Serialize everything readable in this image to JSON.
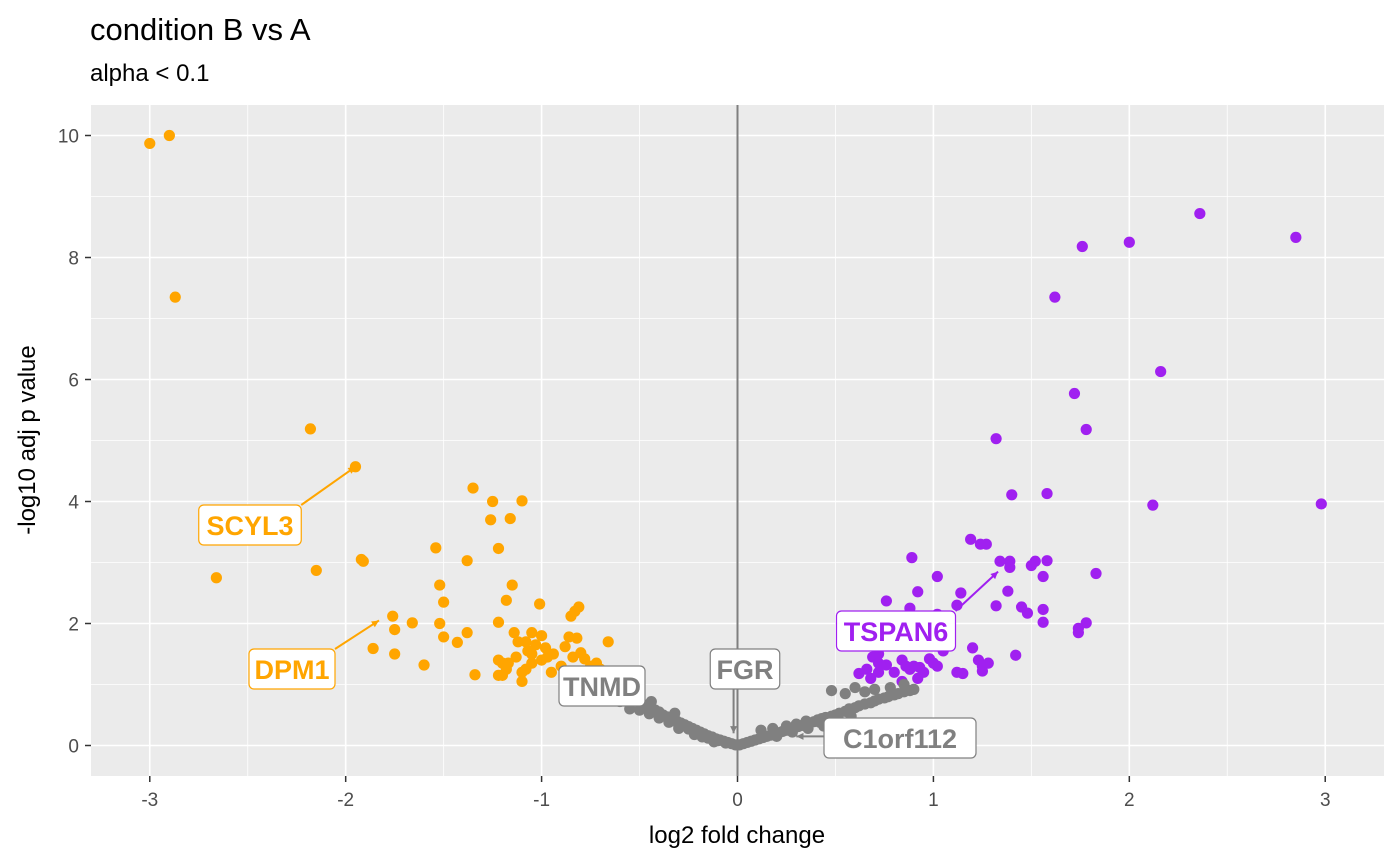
{
  "chart_data": {
    "type": "scatter",
    "title": "condition B vs A",
    "subtitle": "alpha < 0.1",
    "xlabel": "log2 fold change",
    "ylabel": "-log10 adj p value",
    "xlim": [
      -3.3,
      3.3
    ],
    "ylim": [
      -0.5,
      10.5
    ],
    "x_ticks": [
      -3,
      -2,
      -1,
      0,
      1,
      2,
      3
    ],
    "y_ticks": [
      0,
      2,
      4,
      6,
      8,
      10
    ],
    "x_tick_labels": [
      "-3",
      "-2",
      "-1",
      "0",
      "1",
      "2",
      "3"
    ],
    "y_tick_labels": [
      "0",
      "2",
      "4",
      "6",
      "8",
      "10"
    ],
    "grid": true,
    "vline_x": 0,
    "colors": {
      "down": "#FFA500",
      "up": "#A020F0",
      "ns": "#808080",
      "panel": "#EBEBEB"
    },
    "series": [
      {
        "color": "down",
        "points": [
          [
            -3.0,
            9.87
          ],
          [
            -2.9,
            10.0
          ],
          [
            -2.87,
            7.35
          ],
          [
            -2.18,
            5.19
          ],
          [
            -1.95,
            4.57
          ],
          [
            -2.66,
            2.75
          ],
          [
            -2.15,
            2.87
          ],
          [
            -1.92,
            3.05
          ],
          [
            -1.91,
            3.02
          ],
          [
            -1.76,
            2.12
          ],
          [
            -1.75,
            1.9
          ],
          [
            -1.75,
            1.5
          ],
          [
            -1.86,
            1.59
          ],
          [
            -1.66,
            2.01
          ],
          [
            -1.6,
            1.32
          ],
          [
            -1.54,
            3.24
          ],
          [
            -1.52,
            2.63
          ],
          [
            -1.5,
            2.35
          ],
          [
            -1.52,
            2.0
          ],
          [
            -1.5,
            1.78
          ],
          [
            -1.43,
            1.69
          ],
          [
            -1.38,
            1.85
          ],
          [
            -1.38,
            3.03
          ],
          [
            -1.35,
            4.22
          ],
          [
            -1.34,
            1.16
          ],
          [
            -1.25,
            4.0
          ],
          [
            -1.26,
            3.7
          ],
          [
            -1.22,
            3.23
          ],
          [
            -1.22,
            2.02
          ],
          [
            -1.18,
            2.38
          ],
          [
            -1.16,
            3.72
          ],
          [
            -1.15,
            2.63
          ],
          [
            -1.1,
            4.01
          ],
          [
            -1.14,
            1.85
          ],
          [
            -1.12,
            1.7
          ],
          [
            -1.08,
            1.7
          ],
          [
            -1.05,
            1.85
          ],
          [
            -1.03,
            1.65
          ],
          [
            -1.01,
            2.32
          ],
          [
            -1.0,
            1.8
          ],
          [
            -0.98,
            1.6
          ],
          [
            -1.07,
            1.55
          ],
          [
            -1.13,
            1.45
          ],
          [
            -1.17,
            1.35
          ],
          [
            -1.2,
            1.35
          ],
          [
            -1.22,
            1.4
          ],
          [
            -1.22,
            1.15
          ],
          [
            -1.18,
            1.25
          ],
          [
            -1.2,
            1.15
          ],
          [
            -1.1,
            1.05
          ],
          [
            -1.1,
            1.2
          ],
          [
            -1.08,
            1.25
          ],
          [
            -1.05,
            1.5
          ],
          [
            -1.05,
            1.35
          ],
          [
            -1.0,
            1.4
          ],
          [
            -0.97,
            1.45
          ],
          [
            -0.94,
            1.5
          ],
          [
            -0.95,
            1.2
          ],
          [
            -0.9,
            1.3
          ],
          [
            -0.88,
            1.62
          ],
          [
            -0.86,
            1.78
          ],
          [
            -0.85,
            2.12
          ],
          [
            -0.83,
            2.2
          ],
          [
            -0.81,
            2.27
          ],
          [
            -0.84,
            1.45
          ],
          [
            -0.8,
            1.52
          ],
          [
            -0.82,
            1.76
          ],
          [
            -0.78,
            1.42
          ],
          [
            -0.75,
            1.3
          ],
          [
            -0.72,
            1.35
          ],
          [
            -0.7,
            1.25
          ],
          [
            -0.66,
            1.7
          ],
          [
            -0.68,
            1.2
          ]
        ]
      },
      {
        "color": "up",
        "points": [
          [
            1.76,
            8.18
          ],
          [
            2.0,
            8.25
          ],
          [
            2.36,
            8.72
          ],
          [
            2.85,
            8.33
          ],
          [
            1.62,
            7.35
          ],
          [
            2.16,
            6.13
          ],
          [
            1.72,
            5.77
          ],
          [
            1.78,
            5.18
          ],
          [
            1.32,
            5.03
          ],
          [
            1.4,
            4.11
          ],
          [
            1.58,
            4.13
          ],
          [
            2.12,
            3.94
          ],
          [
            2.98,
            3.96
          ],
          [
            0.89,
            3.08
          ],
          [
            1.19,
            3.38
          ],
          [
            1.24,
            3.3
          ],
          [
            1.27,
            3.3
          ],
          [
            1.34,
            3.02
          ],
          [
            1.39,
            3.02
          ],
          [
            1.39,
            2.92
          ],
          [
            1.5,
            2.95
          ],
          [
            1.52,
            3.02
          ],
          [
            1.58,
            3.03
          ],
          [
            1.56,
            2.77
          ],
          [
            1.83,
            2.82
          ],
          [
            1.02,
            2.77
          ],
          [
            0.92,
            2.52
          ],
          [
            1.14,
            2.5
          ],
          [
            1.32,
            2.29
          ],
          [
            1.38,
            2.53
          ],
          [
            1.45,
            2.27
          ],
          [
            1.48,
            2.17
          ],
          [
            1.56,
            2.23
          ],
          [
            1.56,
            2.02
          ],
          [
            1.74,
            1.92
          ],
          [
            1.74,
            1.85
          ],
          [
            1.78,
            2.01
          ],
          [
            1.12,
            2.3
          ],
          [
            1.02,
            2.15
          ],
          [
            0.95,
            2.0
          ],
          [
            0.88,
            2.25
          ],
          [
            0.76,
            2.37
          ],
          [
            0.75,
            2.1
          ],
          [
            0.7,
            2.0
          ],
          [
            0.68,
            1.75
          ],
          [
            0.86,
            1.85
          ],
          [
            0.82,
            1.9
          ],
          [
            0.78,
            1.68
          ],
          [
            0.72,
            1.5
          ],
          [
            0.69,
            1.45
          ],
          [
            0.72,
            1.35
          ],
          [
            0.66,
            1.25
          ],
          [
            0.62,
            1.18
          ],
          [
            0.68,
            1.1
          ],
          [
            0.72,
            1.2
          ],
          [
            0.76,
            1.32
          ],
          [
            0.8,
            1.2
          ],
          [
            0.84,
            1.4
          ],
          [
            0.86,
            1.3
          ],
          [
            0.88,
            1.25
          ],
          [
            0.9,
            1.3
          ],
          [
            0.93,
            1.28
          ],
          [
            0.95,
            1.2
          ],
          [
            0.98,
            1.42
          ],
          [
            1.0,
            1.35
          ],
          [
            1.02,
            1.3
          ],
          [
            1.05,
            1.55
          ],
          [
            1.08,
            1.7
          ],
          [
            1.12,
            1.2
          ],
          [
            1.15,
            1.18
          ],
          [
            1.2,
            1.6
          ],
          [
            1.23,
            1.4
          ],
          [
            1.25,
            1.3
          ],
          [
            1.25,
            1.22
          ],
          [
            1.28,
            1.35
          ],
          [
            1.42,
            1.48
          ],
          [
            0.84,
            1.05
          ],
          [
            0.92,
            1.1
          ]
        ]
      },
      {
        "color": "ns",
        "points": [
          [
            -0.8,
            0.98
          ],
          [
            -0.75,
            0.95
          ],
          [
            -0.7,
            0.92
          ],
          [
            -0.65,
            0.9
          ],
          [
            -0.62,
            0.86
          ],
          [
            -0.58,
            0.82
          ],
          [
            -0.55,
            0.8
          ],
          [
            -0.52,
            0.75
          ],
          [
            -0.5,
            0.7
          ],
          [
            -0.47,
            0.66
          ],
          [
            -0.45,
            0.62
          ],
          [
            -0.42,
            0.58
          ],
          [
            -0.4,
            0.55
          ],
          [
            -0.38,
            0.5
          ],
          [
            -0.36,
            0.47
          ],
          [
            -0.33,
            0.44
          ],
          [
            -0.31,
            0.4
          ],
          [
            -0.29,
            0.37
          ],
          [
            -0.27,
            0.34
          ],
          [
            -0.25,
            0.31
          ],
          [
            -0.23,
            0.28
          ],
          [
            -0.21,
            0.25
          ],
          [
            -0.19,
            0.22
          ],
          [
            -0.17,
            0.19
          ],
          [
            -0.15,
            0.16
          ],
          [
            -0.13,
            0.14
          ],
          [
            -0.11,
            0.11
          ],
          [
            -0.09,
            0.09
          ],
          [
            -0.07,
            0.07
          ],
          [
            -0.05,
            0.05
          ],
          [
            -0.03,
            0.03
          ],
          [
            -0.01,
            0.01
          ],
          [
            -0.78,
            0.85
          ],
          [
            -0.68,
            0.78
          ],
          [
            -0.6,
            0.72
          ],
          [
            -0.55,
            0.6
          ],
          [
            -0.5,
            0.58
          ],
          [
            -0.45,
            0.52
          ],
          [
            -0.4,
            0.45
          ],
          [
            -0.35,
            0.38
          ],
          [
            -0.3,
            0.33
          ],
          [
            -0.25,
            0.27
          ],
          [
            -0.2,
            0.2
          ],
          [
            -0.15,
            0.12
          ],
          [
            -0.1,
            0.08
          ],
          [
            -0.06,
            0.04
          ],
          [
            -0.32,
            0.53
          ],
          [
            -0.44,
            0.72
          ],
          [
            -0.3,
            0.28
          ],
          [
            -0.22,
            0.18
          ],
          [
            -0.18,
            0.14
          ],
          [
            -0.12,
            0.06
          ],
          [
            0.01,
            0.01
          ],
          [
            0.03,
            0.03
          ],
          [
            0.05,
            0.05
          ],
          [
            0.07,
            0.07
          ],
          [
            0.09,
            0.09
          ],
          [
            0.11,
            0.11
          ],
          [
            0.13,
            0.13
          ],
          [
            0.15,
            0.15
          ],
          [
            0.17,
            0.17
          ],
          [
            0.19,
            0.19
          ],
          [
            0.21,
            0.21
          ],
          [
            0.23,
            0.23
          ],
          [
            0.25,
            0.25
          ],
          [
            0.27,
            0.27
          ],
          [
            0.29,
            0.29
          ],
          [
            0.31,
            0.31
          ],
          [
            0.33,
            0.33
          ],
          [
            0.35,
            0.35
          ],
          [
            0.37,
            0.37
          ],
          [
            0.39,
            0.39
          ],
          [
            0.41,
            0.42
          ],
          [
            0.43,
            0.44
          ],
          [
            0.45,
            0.46
          ],
          [
            0.48,
            0.48
          ],
          [
            0.5,
            0.5
          ],
          [
            0.52,
            0.53
          ],
          [
            0.55,
            0.56
          ],
          [
            0.57,
            0.6
          ],
          [
            0.6,
            0.62
          ],
          [
            0.62,
            0.65
          ],
          [
            0.65,
            0.68
          ],
          [
            0.68,
            0.7
          ],
          [
            0.7,
            0.73
          ],
          [
            0.72,
            0.76
          ],
          [
            0.75,
            0.78
          ],
          [
            0.77,
            0.8
          ],
          [
            0.8,
            0.83
          ],
          [
            0.82,
            0.85
          ],
          [
            0.85,
            0.88
          ],
          [
            0.88,
            0.9
          ],
          [
            0.9,
            0.92
          ],
          [
            0.48,
            0.9
          ],
          [
            0.55,
            0.85
          ],
          [
            0.6,
            0.95
          ],
          [
            0.65,
            0.88
          ],
          [
            0.7,
            0.92
          ],
          [
            0.78,
            0.95
          ],
          [
            0.85,
            1.0
          ],
          [
            0.12,
            0.25
          ],
          [
            0.18,
            0.28
          ],
          [
            0.25,
            0.32
          ],
          [
            0.3,
            0.35
          ],
          [
            0.35,
            0.4
          ],
          [
            0.42,
            0.38
          ],
          [
            0.2,
            0.15
          ],
          [
            0.28,
            0.22
          ],
          [
            0.36,
            0.28
          ],
          [
            0.44,
            0.32
          ],
          [
            0.52,
            0.4
          ],
          [
            0.58,
            0.48
          ]
        ]
      }
    ],
    "labels": [
      {
        "text": "SCYL3",
        "color": "down",
        "x": -1.95,
        "y": 4.57
      },
      {
        "text": "DPM1",
        "color": "down",
        "x": -1.83,
        "y": 2.05
      },
      {
        "text": "TSPAN6",
        "color": "up",
        "x": 1.33,
        "y": 2.85
      },
      {
        "text": "TNMD",
        "color": "ns",
        "x": -0.3,
        "y": 0.35
      },
      {
        "text": "FGR",
        "color": "ns",
        "x": -0.02,
        "y": 0.2
      },
      {
        "text": "C1orf112",
        "color": "ns",
        "x": 0.3,
        "y": 0.15
      }
    ]
  }
}
